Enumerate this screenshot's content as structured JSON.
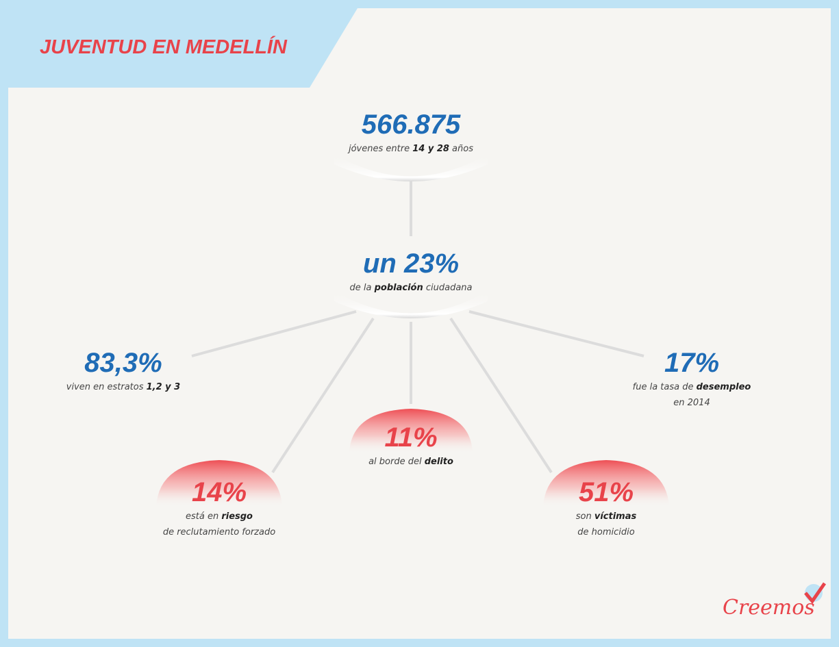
{
  "title": "JUVENTUD EN MEDELLÍN",
  "nodes": [
    {
      "value": "566.875",
      "color": "#1f6cb6",
      "lines": [
        [
          "jóvenes entre ",
          "14 y 28",
          " años"
        ]
      ]
    },
    {
      "value": "un 23%",
      "color": "#1f6cb6",
      "lines": [
        [
          "de la ",
          "población",
          " ciudadana"
        ]
      ]
    },
    {
      "value": "83,3%",
      "color": "#1f6cb6",
      "lines": [
        [
          "viven en estratos ",
          "1,2 y 3"
        ]
      ]
    },
    {
      "value": "17%",
      "color": "#1f6cb6",
      "lines": [
        [
          "fue la tasa de ",
          "desempleo"
        ],
        [
          "en 2014"
        ]
      ]
    },
    {
      "value": "11%",
      "color": "#e8434a",
      "lines": [
        [
          "al borde del ",
          "delito"
        ]
      ]
    },
    {
      "value": "14%",
      "color": "#e8434a",
      "lines": [
        [
          "está en ",
          "riesgo"
        ],
        [
          "de reclutamiento forzado"
        ]
      ]
    },
    {
      "value": "51%",
      "color": "#e8434a",
      "lines": [
        [
          "son ",
          "víctimas"
        ],
        [
          "de homicidio"
        ]
      ]
    }
  ],
  "logo": "Creemos"
}
